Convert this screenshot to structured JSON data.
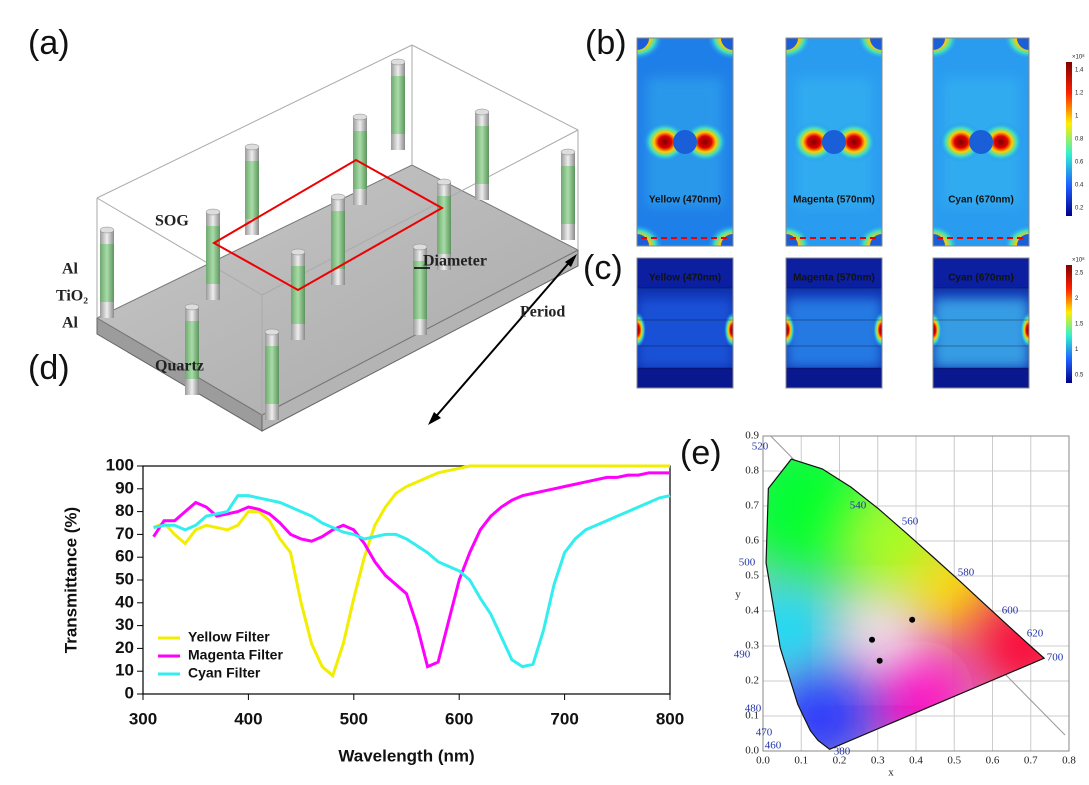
{
  "panel_labels": [
    "(a)",
    "(b)",
    "(c)",
    "(d)",
    "(e)"
  ],
  "schematic": {
    "labels": [
      "SOG",
      "Al",
      "TiO₂",
      "Al",
      "Quartz",
      "Diameter",
      "Period"
    ]
  },
  "field_maps": {
    "b": {
      "labels": [
        "Yellow (470nm)",
        "Magenta (570nm)",
        "Cyan (670nm)"
      ],
      "colorbar_exponent": "×10⁸",
      "colorbar_ticks": [
        1.4,
        1.2,
        1,
        0.8,
        0.6,
        0.4,
        0.2
      ]
    },
    "c": {
      "labels": [
        "Yellow (470nm)",
        "Magenta (570nm)",
        "Cyan (670nm)"
      ],
      "colorbar_exponent": "×10⁸",
      "colorbar_ticks": [
        2.5,
        2,
        1.5,
        1,
        0.5
      ]
    }
  },
  "chart_data": [
    {
      "type": "line",
      "x_label": "Wavelength (nm)",
      "y_label": "Transmittance (%)",
      "x": [
        310,
        320,
        330,
        340,
        350,
        360,
        370,
        380,
        390,
        400,
        410,
        420,
        430,
        440,
        450,
        460,
        470,
        480,
        490,
        500,
        510,
        520,
        530,
        540,
        550,
        560,
        570,
        580,
        590,
        600,
        610,
        620,
        630,
        640,
        650,
        660,
        670,
        680,
        690,
        700,
        710,
        720,
        730,
        740,
        750,
        760,
        770,
        780,
        790,
        800
      ],
      "series": [
        {
          "name": "Yellow Filter",
          "color": "#f2ee00",
          "values": [
            73,
            75,
            70,
            66,
            72,
            74,
            73,
            72,
            74,
            80,
            80,
            76,
            68,
            62,
            40,
            22,
            12,
            8,
            22,
            42,
            60,
            74,
            82,
            88,
            91,
            93,
            95,
            97,
            98,
            99,
            100,
            100,
            100,
            100,
            100,
            100,
            100,
            100,
            100,
            100,
            100,
            100,
            100,
            100,
            100,
            100,
            100,
            100,
            100,
            100
          ]
        },
        {
          "name": "Magenta Filter",
          "color": "#ff00ff",
          "values": [
            69,
            76,
            76,
            80,
            84,
            82,
            78,
            79,
            80,
            82,
            81,
            79,
            75,
            70,
            68,
            67,
            69,
            72,
            74,
            72,
            66,
            58,
            52,
            48,
            44,
            30,
            12,
            14,
            32,
            50,
            62,
            72,
            78,
            82,
            85,
            87,
            88,
            89,
            90,
            91,
            92,
            93,
            94,
            95,
            95,
            96,
            96,
            97,
            97,
            97
          ]
        },
        {
          "name": "Cyan Filter",
          "color": "#33eeee",
          "values": [
            73,
            74,
            74,
            72,
            74,
            78,
            79,
            80,
            87,
            87,
            86,
            85,
            84,
            82,
            80,
            78,
            75,
            73,
            71,
            70,
            68,
            69,
            70,
            70,
            68,
            65,
            62,
            58,
            56,
            54,
            50,
            42,
            35,
            25,
            15,
            12,
            13,
            28,
            48,
            62,
            68,
            72,
            74,
            76,
            78,
            80,
            82,
            84,
            86,
            87
          ]
        }
      ],
      "xlim": [
        300,
        800
      ],
      "xticks": [
        300,
        400,
        500,
        600,
        700,
        800
      ],
      "ylim": [
        0,
        100
      ],
      "yticks": [
        0,
        10,
        20,
        30,
        40,
        50,
        60,
        70,
        80,
        90,
        100
      ],
      "legend": "lower left"
    },
    {
      "type": "scatter",
      "x_label": "x",
      "y_label": "y",
      "x": [
        0.39,
        0.285,
        0.305
      ],
      "values": [
        0.375,
        0.318,
        0.258
      ],
      "color": "#000000",
      "xlim": [
        0,
        0.8
      ],
      "xticks": [
        {
          "value": 0,
          "label": "0.0"
        },
        0.1,
        0.2,
        0.3,
        0.4,
        0.5,
        0.6,
        0.7,
        0.8
      ],
      "ylim": [
        0,
        0.9
      ],
      "yticks": [
        {
          "value": 0,
          "label": "0.0"
        },
        0.1,
        0.2,
        0.3,
        0.4,
        0.5,
        0.6,
        0.7,
        0.8,
        0.9
      ],
      "grid": true,
      "locus_labels": [
        "520",
        "540",
        "560",
        "580",
        "600",
        "620",
        "700",
        "500",
        "490",
        "480",
        "470",
        "460",
        "380"
      ]
    }
  ]
}
